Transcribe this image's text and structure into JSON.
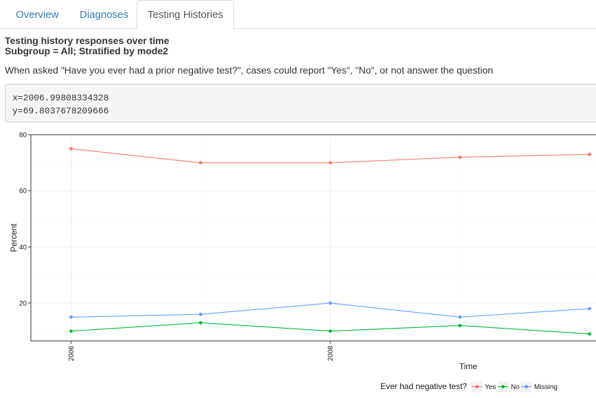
{
  "tabs": [
    {
      "label": "Overview",
      "active": false
    },
    {
      "label": "Diagnoses",
      "active": false
    },
    {
      "label": "Testing Histories",
      "active": true
    }
  ],
  "heading": {
    "title": "Testing history responses over time",
    "subtitle": "Subgroup = All; Stratified by mode2"
  },
  "question": "When asked \"Have you ever had a prior negative test?\", cases could report \"Yes\", \"No\", or not answer the question",
  "hover": {
    "x_text": "x=2006.99808334328",
    "y_text": "y=69.8037678209666"
  },
  "chart_data": {
    "type": "line",
    "xlabel": "Time",
    "ylabel": "Percent",
    "x_ticks": [
      "2006",
      "2008"
    ],
    "y_ticks": [
      "20",
      "40",
      "60",
      "80"
    ],
    "x": [
      2006,
      2007,
      2008,
      2009,
      2010
    ],
    "xlim": [
      2005.69,
      2010.05
    ],
    "ylim": [
      6.5,
      80
    ],
    "grid": true,
    "legend_title": "Ever had negative test?",
    "legend_position": "bottom",
    "series": [
      {
        "name": "Yes",
        "color": "#f8766d",
        "values": [
          75,
          70,
          70,
          72,
          73
        ]
      },
      {
        "name": "No",
        "color": "#00ba38",
        "values": [
          10,
          13,
          10,
          12,
          9
        ]
      },
      {
        "name": "Missing",
        "color": "#619cff",
        "values": [
          15,
          16,
          20,
          15,
          18
        ]
      }
    ]
  }
}
